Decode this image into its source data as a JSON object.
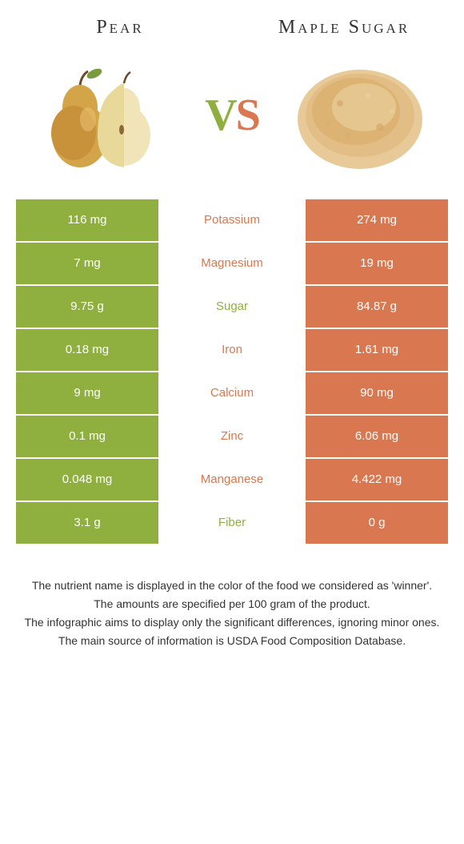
{
  "left": {
    "title": "Pear",
    "color": "#8fb03e"
  },
  "right": {
    "title": "Maple Sugar",
    "color": "#d97850"
  },
  "vs": {
    "v": "V",
    "s": "S"
  },
  "rows": [
    {
      "nutrient": "Potassium",
      "left": "116 mg",
      "right": "274 mg",
      "winner": "right"
    },
    {
      "nutrient": "Magnesium",
      "left": "7 mg",
      "right": "19 mg",
      "winner": "right"
    },
    {
      "nutrient": "Sugar",
      "left": "9.75 g",
      "right": "84.87 g",
      "winner": "left"
    },
    {
      "nutrient": "Iron",
      "left": "0.18 mg",
      "right": "1.61 mg",
      "winner": "right"
    },
    {
      "nutrient": "Calcium",
      "left": "9 mg",
      "right": "90 mg",
      "winner": "right"
    },
    {
      "nutrient": "Zinc",
      "left": "0.1 mg",
      "right": "6.06 mg",
      "winner": "right"
    },
    {
      "nutrient": "Manganese",
      "left": "0.048 mg",
      "right": "4.422 mg",
      "winner": "right"
    },
    {
      "nutrient": "Fiber",
      "left": "3.1 g",
      "right": "0 g",
      "winner": "left"
    }
  ],
  "footnotes": [
    "The nutrient name is displayed in the color of the food we considered as 'winner'.",
    "The amounts are specified per 100 gram of the product.",
    "The infographic aims to display only the significant differences, ignoring minor ones.",
    "The main source of information is USDA Food Composition Database."
  ]
}
